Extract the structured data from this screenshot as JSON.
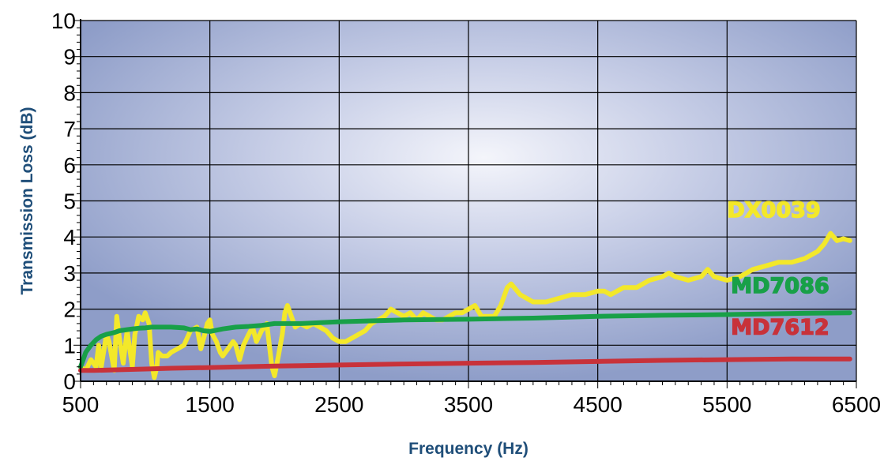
{
  "chart_data": {
    "type": "line",
    "title": "",
    "xlabel": "Frequency (Hz)",
    "ylabel": "Transmission Loss (dB)",
    "xlim": [
      500,
      6500
    ],
    "ylim": [
      0,
      10
    ],
    "x_ticks": [
      "500",
      "1500",
      "2500",
      "3500",
      "4500",
      "5500",
      "6500"
    ],
    "y_ticks": [
      "0",
      "1",
      "2",
      "3",
      "4",
      "5",
      "6",
      "7",
      "8",
      "9",
      "10"
    ],
    "grid": true,
    "legend": "none",
    "plot_background": [
      "#f2f3fa",
      "#8e9dc8"
    ],
    "series": [
      {
        "name": "DX0039",
        "color": "#f3e82a",
        "x": [
          500,
          540,
          580,
          620,
          640,
          660,
          700,
          720,
          760,
          780,
          800,
          830,
          860,
          880,
          900,
          920,
          950,
          980,
          1000,
          1030,
          1050,
          1070,
          1090,
          1100,
          1130,
          1170,
          1200,
          1250,
          1300,
          1350,
          1400,
          1430,
          1460,
          1480,
          1500,
          1520,
          1550,
          1580,
          1600,
          1640,
          1680,
          1700,
          1730,
          1760,
          1800,
          1830,
          1860,
          1900,
          1940,
          1980,
          2000,
          2030,
          2060,
          2080,
          2100,
          2130,
          2160,
          2200,
          2250,
          2300,
          2350,
          2400,
          2450,
          2500,
          2550,
          2600,
          2650,
          2700,
          2750,
          2800,
          2850,
          2900,
          2950,
          3000,
          3050,
          3100,
          3150,
          3200,
          3250,
          3300,
          3350,
          3400,
          3450,
          3500,
          3550,
          3600,
          3650,
          3700,
          3750,
          3800,
          3830,
          3900,
          3950,
          4000,
          4100,
          4200,
          4300,
          4400,
          4500,
          4550,
          4600,
          4700,
          4800,
          4900,
          5000,
          5050,
          5100,
          5200,
          5300,
          5350,
          5400,
          5500,
          5600,
          5700,
          5800,
          5900,
          6000,
          6100,
          6200,
          6250,
          6300,
          6350,
          6400,
          6450
        ],
        "y": [
          0.4,
          0.3,
          0.6,
          0.4,
          1.0,
          0.4,
          1.3,
          1.1,
          0.3,
          1.8,
          1.2,
          0.5,
          1.4,
          0.9,
          0.4,
          1.3,
          1.8,
          1.7,
          1.9,
          1.6,
          0.5,
          0.1,
          0.4,
          0.8,
          0.7,
          0.7,
          0.8,
          0.9,
          1.0,
          1.4,
          1.5,
          0.9,
          1.3,
          1.6,
          1.7,
          1.3,
          1.1,
          0.8,
          0.7,
          0.9,
          1.1,
          1.0,
          0.6,
          1.0,
          1.3,
          1.5,
          1.1,
          1.4,
          1.6,
          0.4,
          0.15,
          0.7,
          1.3,
          1.9,
          2.1,
          1.8,
          1.5,
          1.6,
          1.5,
          1.6,
          1.5,
          1.4,
          1.2,
          1.1,
          1.1,
          1.2,
          1.3,
          1.4,
          1.6,
          1.7,
          1.8,
          2.0,
          1.9,
          1.8,
          1.9,
          1.7,
          1.9,
          1.8,
          1.7,
          1.7,
          1.8,
          1.9,
          1.9,
          2.0,
          2.1,
          1.8,
          1.8,
          1.8,
          2.1,
          2.6,
          2.7,
          2.4,
          2.3,
          2.2,
          2.2,
          2.3,
          2.4,
          2.4,
          2.5,
          2.5,
          2.4,
          2.6,
          2.6,
          2.8,
          2.9,
          3.0,
          2.9,
          2.8,
          2.9,
          3.1,
          2.9,
          2.8,
          2.9,
          3.1,
          3.2,
          3.3,
          3.3,
          3.4,
          3.6,
          3.8,
          4.1,
          3.9,
          3.95,
          3.9
        ]
      },
      {
        "name": "MD7086",
        "color": "#18a048",
        "x": [
          500,
          520,
          540,
          580,
          620,
          660,
          700,
          760,
          800,
          860,
          900,
          950,
          1000,
          1050,
          1100,
          1150,
          1200,
          1300,
          1350,
          1400,
          1450,
          1500,
          1600,
          1700,
          1800,
          1900,
          2000,
          2200,
          2500,
          3000,
          3500,
          4000,
          4500,
          5000,
          5500,
          6000,
          6450
        ],
        "y": [
          0.4,
          0.6,
          0.8,
          1.0,
          1.15,
          1.25,
          1.3,
          1.35,
          1.4,
          1.43,
          1.45,
          1.47,
          1.48,
          1.5,
          1.5,
          1.5,
          1.5,
          1.48,
          1.43,
          1.45,
          1.4,
          1.38,
          1.45,
          1.5,
          1.52,
          1.55,
          1.6,
          1.6,
          1.65,
          1.7,
          1.72,
          1.75,
          1.8,
          1.83,
          1.85,
          1.88,
          1.9
        ]
      },
      {
        "name": "MD7612",
        "color": "#c8323a",
        "x": [
          500,
          600,
          800,
          1000,
          1200,
          1500,
          2000,
          2500,
          3000,
          3500,
          4000,
          4500,
          5000,
          5500,
          6000,
          6450
        ],
        "y": [
          0.3,
          0.3,
          0.32,
          0.34,
          0.36,
          0.38,
          0.42,
          0.45,
          0.48,
          0.5,
          0.52,
          0.55,
          0.58,
          0.6,
          0.62,
          0.62
        ]
      }
    ],
    "series_labels": [
      "DX0039",
      "MD7086",
      "MD7612"
    ]
  }
}
